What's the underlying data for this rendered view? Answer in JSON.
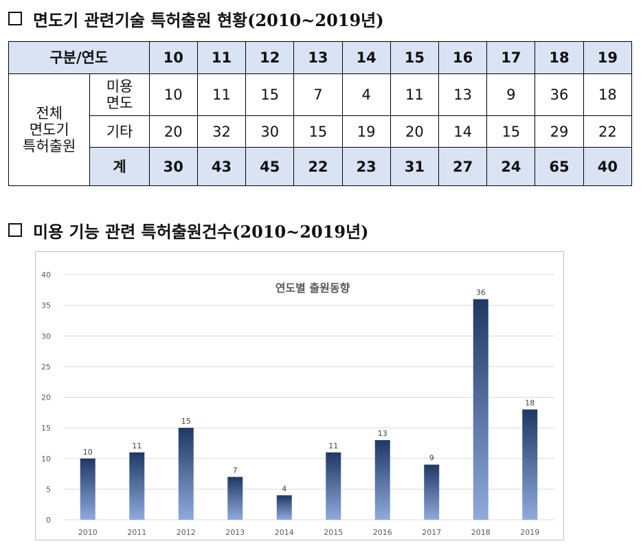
{
  "section1": {
    "title": "면도기 관련기술 특허출원 현황(2010~2019년)"
  },
  "table": {
    "header_label": "구분/연도",
    "years": [
      "10",
      "11",
      "12",
      "13",
      "14",
      "15",
      "16",
      "17",
      "18",
      "19"
    ],
    "group_label": "전체\n면도기\n특허출원",
    "rows": [
      {
        "label": "미용\n면도",
        "values": [
          "10",
          "11",
          "15",
          "7",
          "4",
          "11",
          "13",
          "9",
          "36",
          "18"
        ]
      },
      {
        "label": "기타",
        "values": [
          "20",
          "32",
          "30",
          "15",
          "19",
          "20",
          "14",
          "15",
          "29",
          "22"
        ]
      },
      {
        "label": "계",
        "values": [
          "30",
          "43",
          "45",
          "22",
          "23",
          "31",
          "27",
          "24",
          "65",
          "40"
        ]
      }
    ]
  },
  "section2": {
    "title": "미용 기능 관련 특허출원건수(2010~2019년)"
  },
  "colors": {
    "bar_top": "#1f3864",
    "bar_bottom": "#8faadc",
    "header_bg": "#dae3f3",
    "grid": "#d9d9d9"
  },
  "chart_data": {
    "type": "bar",
    "title": "연도별 출원동향",
    "categories": [
      "2010",
      "2011",
      "2012",
      "2013",
      "2014",
      "2015",
      "2016",
      "2017",
      "2018",
      "2019"
    ],
    "values": [
      10,
      11,
      15,
      7,
      4,
      11,
      13,
      9,
      36,
      18
    ],
    "ylim": [
      0,
      40
    ],
    "yticks": [
      0,
      5,
      10,
      15,
      20,
      25,
      30,
      35,
      40
    ],
    "grid": true,
    "legend": "none",
    "data_labels": true
  }
}
